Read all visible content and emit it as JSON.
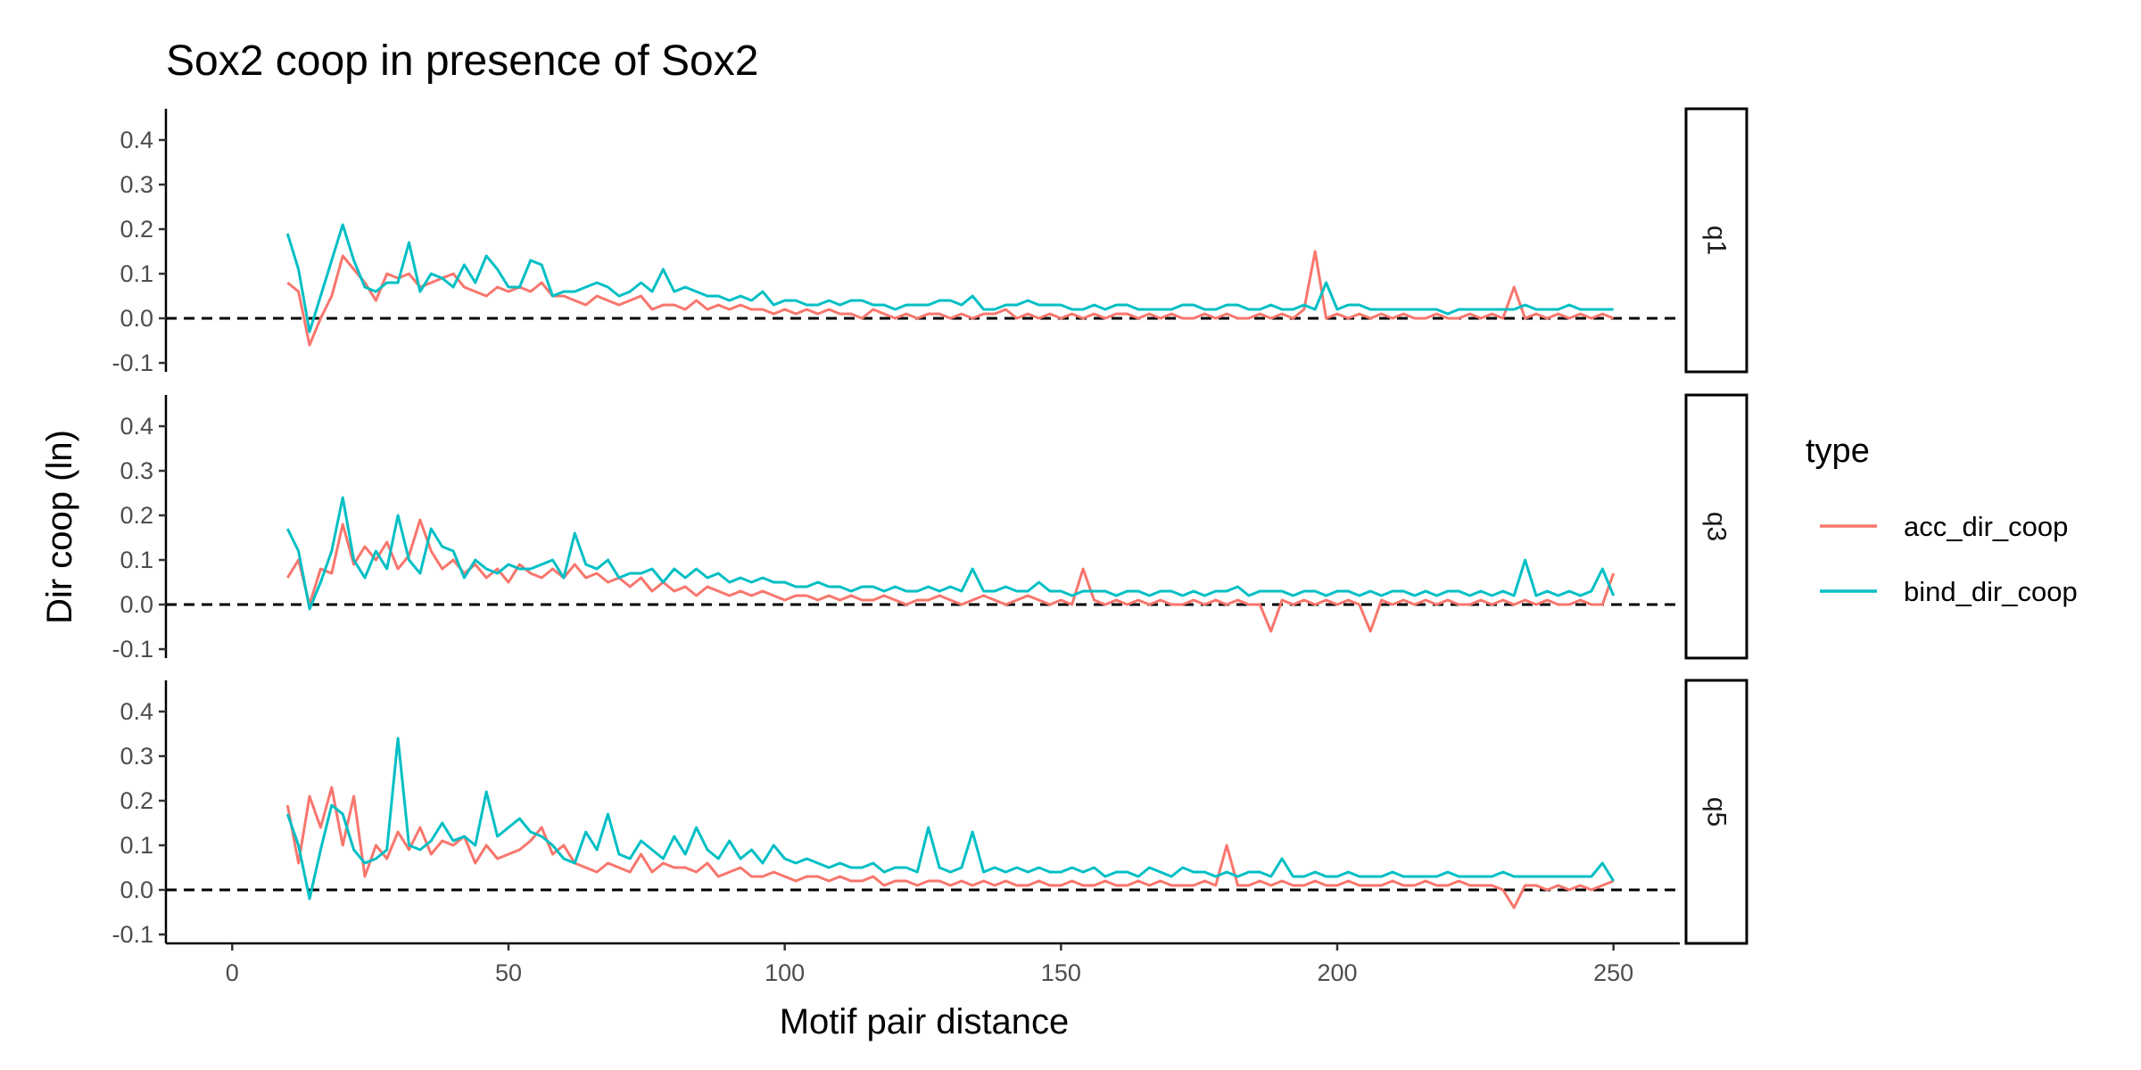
{
  "chart_data": {
    "type": "line",
    "title": "Sox2 coop in presence of Sox2",
    "xlabel": "Motif pair distance",
    "ylabel": "Dir coop (ln)",
    "xlim": [
      -12,
      262
    ],
    "ylim": [
      -0.12,
      0.47
    ],
    "x_ticks": [
      0,
      50,
      100,
      150,
      200,
      250
    ],
    "y_ticks": [
      -0.1,
      0.0,
      0.1,
      0.2,
      0.3,
      0.4
    ],
    "x_tick_labels": [
      "0",
      "50",
      "100",
      "150",
      "200",
      "250"
    ],
    "y_tick_labels": [
      "-0.1",
      "0.0",
      "0.1",
      "0.2",
      "0.3",
      "0.4"
    ],
    "reference_line": {
      "y": 0,
      "style": "dashed",
      "color": "#000000"
    },
    "grid": false,
    "legend": {
      "title": "type",
      "position": "right",
      "entries": [
        {
          "label": "acc_dir_coop",
          "color": "#F8766D"
        },
        {
          "label": "bind_dir_coop",
          "color": "#00BFC4"
        }
      ]
    },
    "x_start": 10,
    "x_step": 2,
    "panels": [
      {
        "label": "q1",
        "series": [
          {
            "name": "acc_dir_coop",
            "color": "#F8766D",
            "values": [
              0.08,
              0.06,
              -0.06,
              0.0,
              0.05,
              0.14,
              0.11,
              0.08,
              0.04,
              0.1,
              0.09,
              0.1,
              0.07,
              0.08,
              0.09,
              0.1,
              0.07,
              0.06,
              0.05,
              0.07,
              0.06,
              0.07,
              0.06,
              0.08,
              0.05,
              0.05,
              0.04,
              0.03,
              0.05,
              0.04,
              0.03,
              0.04,
              0.05,
              0.02,
              0.03,
              0.03,
              0.02,
              0.04,
              0.02,
              0.03,
              0.02,
              0.03,
              0.02,
              0.02,
              0.01,
              0.02,
              0.01,
              0.02,
              0.01,
              0.02,
              0.01,
              0.01,
              0.0,
              0.02,
              0.01,
              0.0,
              0.01,
              0.0,
              0.01,
              0.01,
              0.0,
              0.01,
              0.0,
              0.01,
              0.01,
              0.02,
              0.0,
              0.01,
              0.0,
              0.01,
              0.0,
              0.01,
              0.0,
              0.01,
              0.0,
              0.01,
              0.01,
              0.0,
              0.01,
              0.0,
              0.01,
              0.0,
              0.0,
              0.01,
              0.0,
              0.01,
              0.0,
              0.0,
              0.01,
              0.0,
              0.01,
              0.0,
              0.02,
              0.15,
              0.0,
              0.01,
              0.0,
              0.01,
              0.0,
              0.01,
              0.0,
              0.01,
              0.0,
              0.0,
              0.01,
              0.0,
              0.0,
              0.01,
              0.0,
              0.01,
              0.0,
              0.07,
              0.0,
              0.01,
              0.0,
              0.01,
              0.0,
              0.01,
              0.0,
              0.01,
              0.0
            ]
          },
          {
            "name": "bind_dir_coop",
            "color": "#00BFC4",
            "values": [
              0.19,
              0.11,
              -0.03,
              0.05,
              0.13,
              0.21,
              0.13,
              0.07,
              0.06,
              0.08,
              0.08,
              0.17,
              0.06,
              0.1,
              0.09,
              0.07,
              0.12,
              0.08,
              0.14,
              0.11,
              0.07,
              0.07,
              0.13,
              0.12,
              0.05,
              0.06,
              0.06,
              0.07,
              0.08,
              0.07,
              0.05,
              0.06,
              0.08,
              0.06,
              0.11,
              0.06,
              0.07,
              0.06,
              0.05,
              0.05,
              0.04,
              0.05,
              0.04,
              0.06,
              0.03,
              0.04,
              0.04,
              0.03,
              0.03,
              0.04,
              0.03,
              0.04,
              0.04,
              0.03,
              0.03,
              0.02,
              0.03,
              0.03,
              0.03,
              0.04,
              0.04,
              0.03,
              0.05,
              0.02,
              0.02,
              0.03,
              0.03,
              0.04,
              0.03,
              0.03,
              0.03,
              0.02,
              0.02,
              0.03,
              0.02,
              0.03,
              0.03,
              0.02,
              0.02,
              0.02,
              0.02,
              0.03,
              0.03,
              0.02,
              0.02,
              0.03,
              0.03,
              0.02,
              0.02,
              0.03,
              0.02,
              0.02,
              0.03,
              0.02,
              0.08,
              0.02,
              0.03,
              0.03,
              0.02,
              0.02,
              0.02,
              0.02,
              0.02,
              0.02,
              0.02,
              0.01,
              0.02,
              0.02,
              0.02,
              0.02,
              0.02,
              0.02,
              0.03,
              0.02,
              0.02,
              0.02,
              0.03,
              0.02,
              0.02,
              0.02,
              0.02
            ]
          }
        ]
      },
      {
        "label": "q3",
        "series": [
          {
            "name": "acc_dir_coop",
            "color": "#F8766D",
            "values": [
              0.06,
              0.1,
              0.0,
              0.08,
              0.07,
              0.18,
              0.09,
              0.13,
              0.1,
              0.14,
              0.08,
              0.11,
              0.19,
              0.12,
              0.08,
              0.1,
              0.07,
              0.09,
              0.06,
              0.08,
              0.05,
              0.09,
              0.07,
              0.06,
              0.08,
              0.06,
              0.09,
              0.06,
              0.07,
              0.05,
              0.06,
              0.04,
              0.06,
              0.03,
              0.05,
              0.03,
              0.04,
              0.02,
              0.04,
              0.03,
              0.02,
              0.03,
              0.02,
              0.03,
              0.02,
              0.01,
              0.02,
              0.02,
              0.01,
              0.02,
              0.01,
              0.02,
              0.01,
              0.01,
              0.02,
              0.01,
              0.0,
              0.01,
              0.01,
              0.02,
              0.01,
              0.0,
              0.01,
              0.02,
              0.01,
              0.0,
              0.01,
              0.02,
              0.01,
              0.0,
              0.01,
              0.0,
              0.08,
              0.01,
              0.0,
              0.01,
              0.0,
              0.01,
              0.0,
              0.01,
              0.0,
              0.0,
              0.01,
              0.0,
              0.01,
              0.0,
              0.01,
              0.0,
              0.0,
              -0.06,
              0.01,
              0.0,
              0.01,
              0.0,
              0.01,
              0.0,
              0.01,
              0.0,
              -0.06,
              0.01,
              0.0,
              0.01,
              0.0,
              0.01,
              0.0,
              0.01,
              0.0,
              0.0,
              0.01,
              0.0,
              0.01,
              0.0,
              0.01,
              0.0,
              0.01,
              0.0,
              0.0,
              0.01,
              0.0,
              0.0,
              0.07
            ]
          },
          {
            "name": "bind_dir_coop",
            "color": "#00BFC4",
            "values": [
              0.17,
              0.12,
              -0.01,
              0.05,
              0.12,
              0.24,
              0.1,
              0.06,
              0.12,
              0.08,
              0.2,
              0.1,
              0.07,
              0.17,
              0.13,
              0.12,
              0.06,
              0.1,
              0.08,
              0.07,
              0.09,
              0.08,
              0.08,
              0.09,
              0.1,
              0.06,
              0.16,
              0.09,
              0.08,
              0.1,
              0.06,
              0.07,
              0.07,
              0.08,
              0.05,
              0.08,
              0.06,
              0.08,
              0.06,
              0.07,
              0.05,
              0.06,
              0.05,
              0.06,
              0.05,
              0.05,
              0.04,
              0.04,
              0.05,
              0.04,
              0.04,
              0.03,
              0.04,
              0.04,
              0.03,
              0.04,
              0.03,
              0.03,
              0.04,
              0.03,
              0.04,
              0.03,
              0.08,
              0.03,
              0.03,
              0.04,
              0.03,
              0.03,
              0.05,
              0.03,
              0.03,
              0.02,
              0.03,
              0.03,
              0.03,
              0.02,
              0.03,
              0.03,
              0.02,
              0.03,
              0.03,
              0.02,
              0.03,
              0.02,
              0.03,
              0.03,
              0.04,
              0.02,
              0.03,
              0.03,
              0.03,
              0.02,
              0.03,
              0.03,
              0.02,
              0.03,
              0.03,
              0.02,
              0.03,
              0.02,
              0.03,
              0.03,
              0.02,
              0.03,
              0.02,
              0.03,
              0.03,
              0.02,
              0.03,
              0.02,
              0.03,
              0.02,
              0.1,
              0.02,
              0.03,
              0.02,
              0.03,
              0.02,
              0.03,
              0.08,
              0.02
            ]
          }
        ]
      },
      {
        "label": "q5",
        "series": [
          {
            "name": "acc_dir_coop",
            "color": "#F8766D",
            "values": [
              0.19,
              0.06,
              0.21,
              0.14,
              0.23,
              0.1,
              0.21,
              0.03,
              0.1,
              0.07,
              0.13,
              0.09,
              0.14,
              0.08,
              0.11,
              0.1,
              0.12,
              0.06,
              0.1,
              0.07,
              0.08,
              0.09,
              0.11,
              0.14,
              0.08,
              0.1,
              0.06,
              0.05,
              0.04,
              0.06,
              0.05,
              0.04,
              0.08,
              0.04,
              0.06,
              0.05,
              0.05,
              0.04,
              0.06,
              0.03,
              0.04,
              0.05,
              0.03,
              0.03,
              0.04,
              0.03,
              0.02,
              0.03,
              0.03,
              0.02,
              0.03,
              0.02,
              0.02,
              0.03,
              0.01,
              0.02,
              0.02,
              0.01,
              0.02,
              0.02,
              0.01,
              0.02,
              0.01,
              0.02,
              0.01,
              0.02,
              0.01,
              0.01,
              0.02,
              0.01,
              0.01,
              0.02,
              0.01,
              0.01,
              0.02,
              0.01,
              0.01,
              0.02,
              0.01,
              0.02,
              0.01,
              0.01,
              0.01,
              0.02,
              0.01,
              0.1,
              0.01,
              0.01,
              0.02,
              0.01,
              0.02,
              0.01,
              0.01,
              0.02,
              0.01,
              0.01,
              0.02,
              0.01,
              0.01,
              0.01,
              0.02,
              0.01,
              0.01,
              0.02,
              0.01,
              0.01,
              0.02,
              0.01,
              0.01,
              0.01,
              0.0,
              -0.04,
              0.01,
              0.01,
              0.0,
              0.01,
              0.0,
              0.01,
              0.0,
              0.01,
              0.02
            ]
          },
          {
            "name": "bind_dir_coop",
            "color": "#00BFC4",
            "values": [
              0.17,
              0.1,
              -0.02,
              0.09,
              0.19,
              0.17,
              0.09,
              0.06,
              0.07,
              0.09,
              0.34,
              0.1,
              0.09,
              0.11,
              0.15,
              0.11,
              0.12,
              0.1,
              0.22,
              0.12,
              0.14,
              0.16,
              0.13,
              0.12,
              0.1,
              0.07,
              0.06,
              0.13,
              0.09,
              0.17,
              0.08,
              0.07,
              0.11,
              0.09,
              0.07,
              0.12,
              0.08,
              0.14,
              0.09,
              0.07,
              0.11,
              0.07,
              0.09,
              0.06,
              0.1,
              0.07,
              0.06,
              0.07,
              0.06,
              0.05,
              0.06,
              0.05,
              0.05,
              0.06,
              0.04,
              0.05,
              0.05,
              0.04,
              0.14,
              0.05,
              0.04,
              0.05,
              0.13,
              0.04,
              0.05,
              0.04,
              0.05,
              0.04,
              0.05,
              0.04,
              0.04,
              0.05,
              0.04,
              0.05,
              0.03,
              0.04,
              0.04,
              0.03,
              0.05,
              0.04,
              0.03,
              0.05,
              0.04,
              0.04,
              0.03,
              0.04,
              0.03,
              0.04,
              0.04,
              0.03,
              0.07,
              0.03,
              0.03,
              0.04,
              0.03,
              0.03,
              0.04,
              0.03,
              0.03,
              0.03,
              0.04,
              0.03,
              0.03,
              0.03,
              0.03,
              0.04,
              0.03,
              0.03,
              0.03,
              0.03,
              0.04,
              0.03,
              0.03,
              0.03,
              0.03,
              0.03,
              0.03,
              0.03,
              0.03,
              0.06,
              0.02
            ]
          }
        ]
      }
    ]
  }
}
